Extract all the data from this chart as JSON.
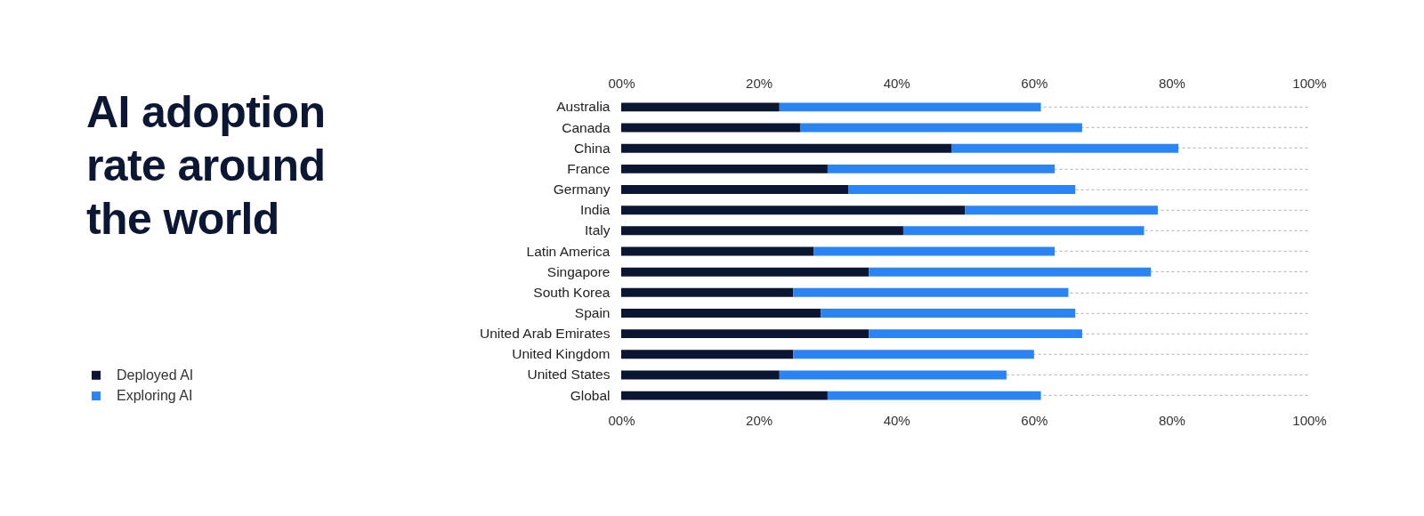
{
  "chart_data": {
    "type": "bar",
    "orientation": "horizontal",
    "stacked": true,
    "title": "AI adoption rate around the world",
    "categories": [
      "Australia",
      "Canada",
      "China",
      "France",
      "Germany",
      "India",
      "Italy",
      "Latin America",
      "Singapore",
      "South Korea",
      "Spain",
      "United Arab Emirates",
      "United Kingdom",
      "United States",
      "Global"
    ],
    "series": [
      {
        "name": "Deployed AI",
        "color": "#0b1633",
        "values": [
          23,
          26,
          48,
          30,
          33,
          50,
          41,
          28,
          36,
          25,
          29,
          36,
          25,
          23,
          30
        ]
      },
      {
        "name": "Exploring AI",
        "color": "#2b84f3",
        "values": [
          38,
          41,
          33,
          33,
          33,
          28,
          35,
          35,
          41,
          40,
          37,
          31,
          35,
          33,
          31
        ]
      }
    ],
    "xlim": [
      0,
      100
    ],
    "xticks": [
      {
        "value": 0,
        "label": "00%"
      },
      {
        "value": 20,
        "label": "20%"
      },
      {
        "value": 40,
        "label": "40%"
      },
      {
        "value": 60,
        "label": "60%"
      },
      {
        "value": 80,
        "label": "80%"
      },
      {
        "value": 100,
        "label": "100%"
      }
    ],
    "x2lim": [
      0,
      100
    ],
    "x2ticks": [
      {
        "value": 0,
        "label": "00%"
      },
      {
        "value": 20,
        "label": "20%"
      },
      {
        "value": 40,
        "label": "40%"
      },
      {
        "value": 60,
        "label": "60%"
      },
      {
        "value": 80,
        "label": "80%"
      },
      {
        "value": 100,
        "label": "100%"
      }
    ],
    "grid": "y",
    "legend": "bottom left"
  }
}
